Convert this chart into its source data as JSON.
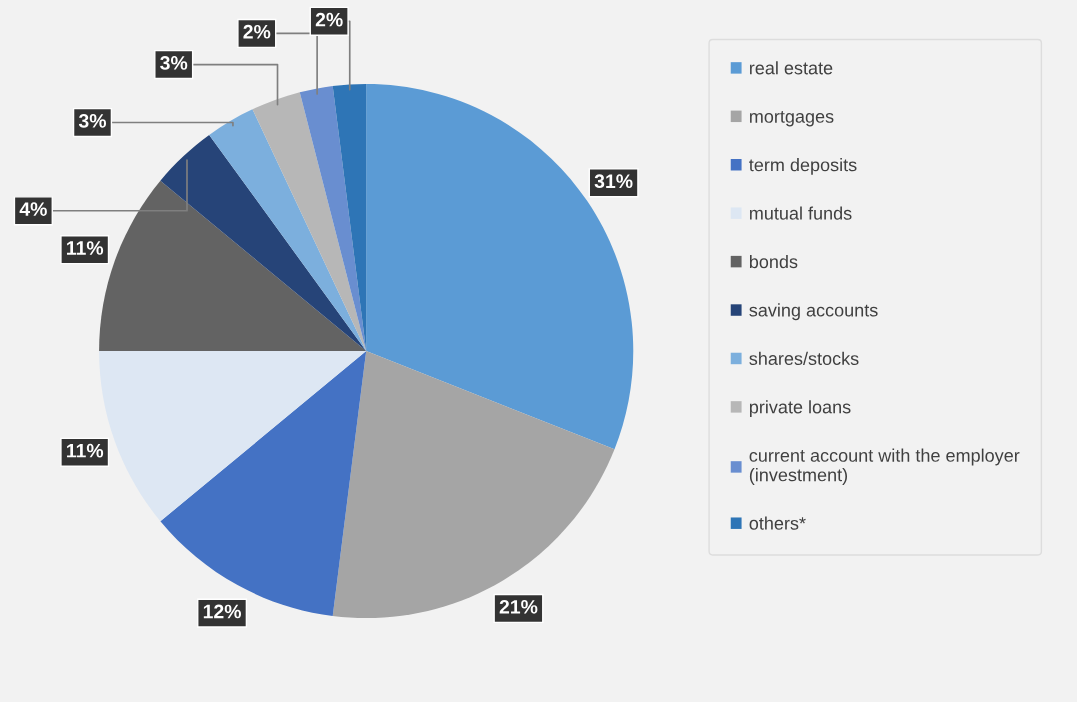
{
  "chart_data": {
    "type": "pie",
    "categories": [
      "real estate",
      "mortgages",
      "term deposits",
      "mutual funds",
      "bonds",
      "saving accounts",
      "shares/stocks",
      "private loans",
      "current account with the employer\n(investment)",
      "others*"
    ],
    "values": [
      31,
      21,
      12,
      11,
      11,
      4,
      3,
      3,
      2,
      2
    ],
    "colors": [
      "#5b9bd5",
      "#a5a5a5",
      "#4472c4",
      "#dde7f3",
      "#636363",
      "#264478",
      "#7cafdd",
      "#b7b7b7",
      "#698ed0",
      "#2e75b6"
    ],
    "value_labels": [
      "31%",
      "21%",
      "12%",
      "11%",
      "11%",
      "4%",
      "3%",
      "3%",
      "2%",
      "2%"
    ],
    "legend": "right"
  }
}
